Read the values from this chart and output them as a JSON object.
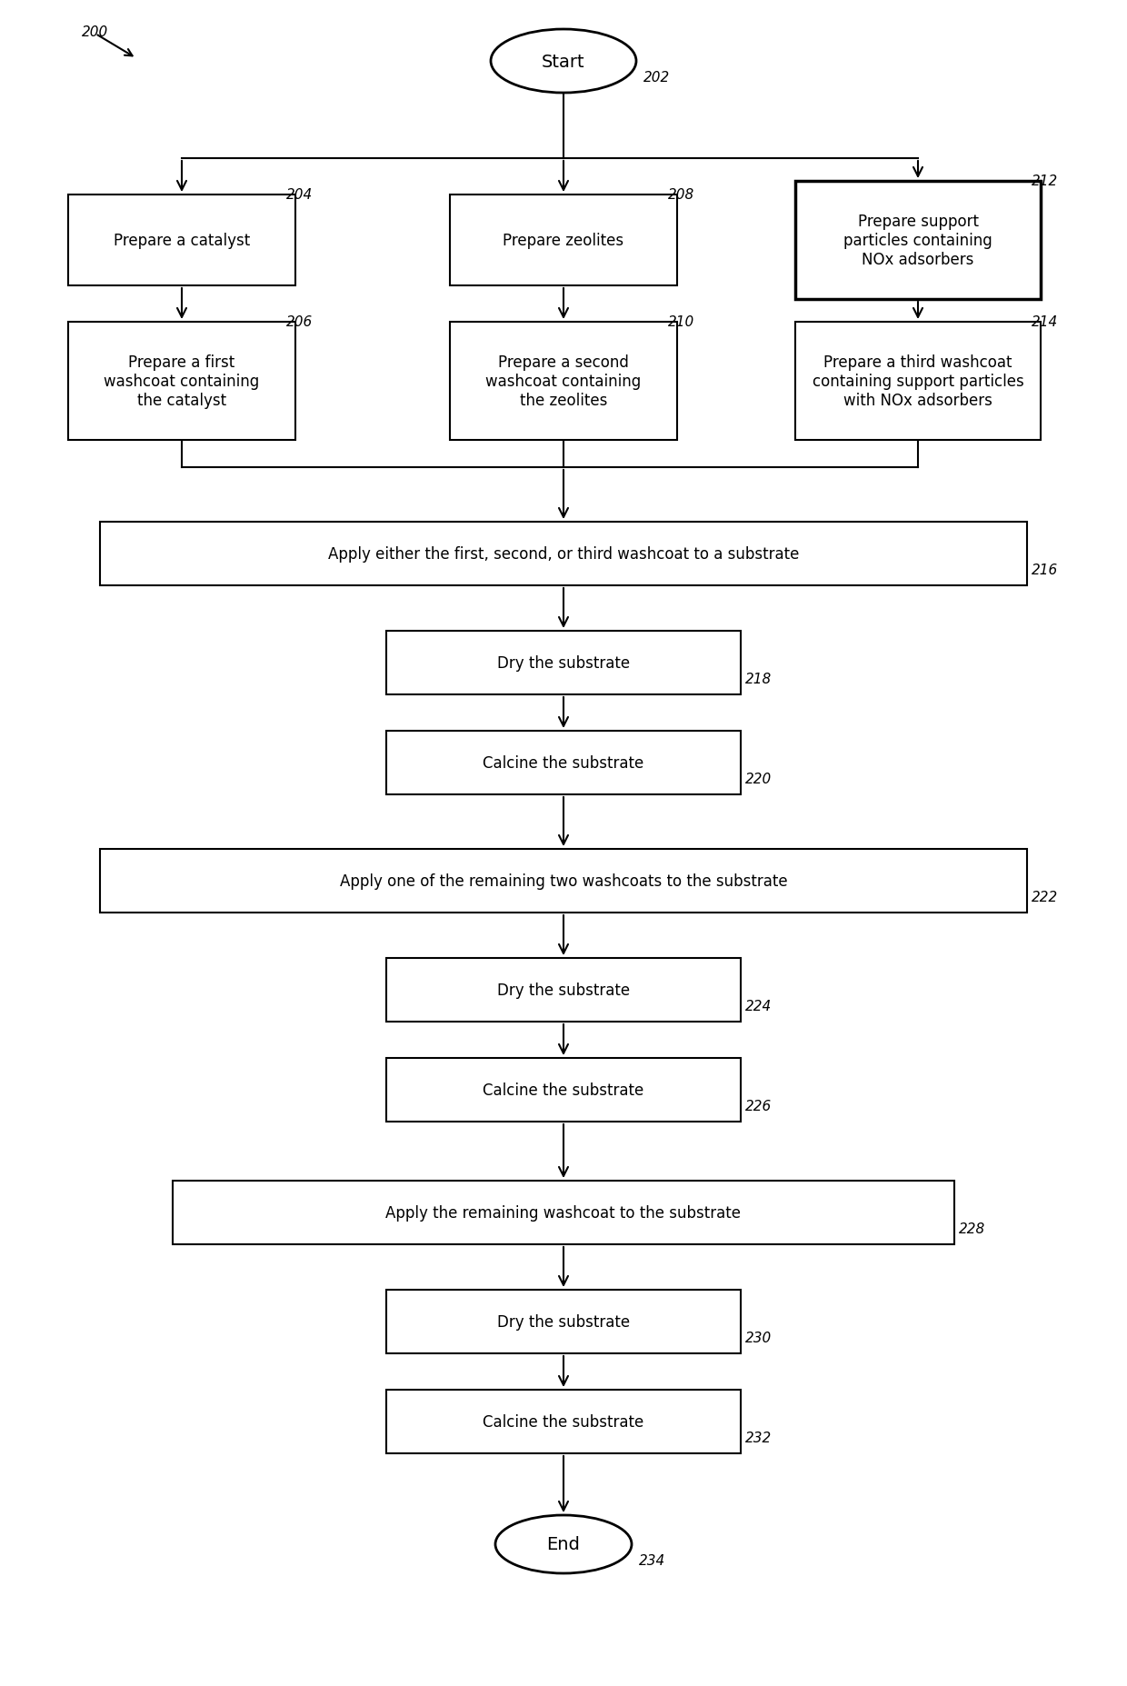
{
  "bg_color": "#ffffff",
  "line_color": "#000000",
  "text_color": "#000000",
  "fig_width": 12.4,
  "fig_height": 18.56,
  "start_label": "Start",
  "end_label": "End",
  "ref200": "200",
  "ref202": "202",
  "ref204": "204",
  "ref206": "206",
  "ref208": "208",
  "ref210": "210",
  "ref212": "212",
  "ref214": "214",
  "ref216": "216",
  "ref218": "218",
  "ref220": "220",
  "ref222": "222",
  "ref224": "224",
  "ref226": "226",
  "ref228": "228",
  "ref230": "230",
  "ref232": "232",
  "ref234": "234",
  "box204_text": "Prepare a catalyst",
  "box208_text": "Prepare zeolites",
  "box212_text": "Prepare support\nparticles containing\nNOx adsorbers",
  "box206_text": "Prepare a first\nwashcoat containing\nthe catalyst",
  "box210_text": "Prepare a second\nwashcoat containing\nthe zeolites",
  "box214_text": "Prepare a third washcoat\ncontaining support particles\nwith NOx adsorbers",
  "box216_text": "Apply either the first, second, or third washcoat to a substrate",
  "box218_text": "Dry the substrate",
  "box220_text": "Calcine the substrate",
  "box222_text": "Apply one of the remaining two washcoats to the substrate",
  "box224_text": "Dry the substrate",
  "box226_text": "Calcine the substrate",
  "box228_text": "Apply the remaining washcoat to the substrate",
  "box230_text": "Dry the substrate",
  "box232_text": "Calcine the substrate"
}
